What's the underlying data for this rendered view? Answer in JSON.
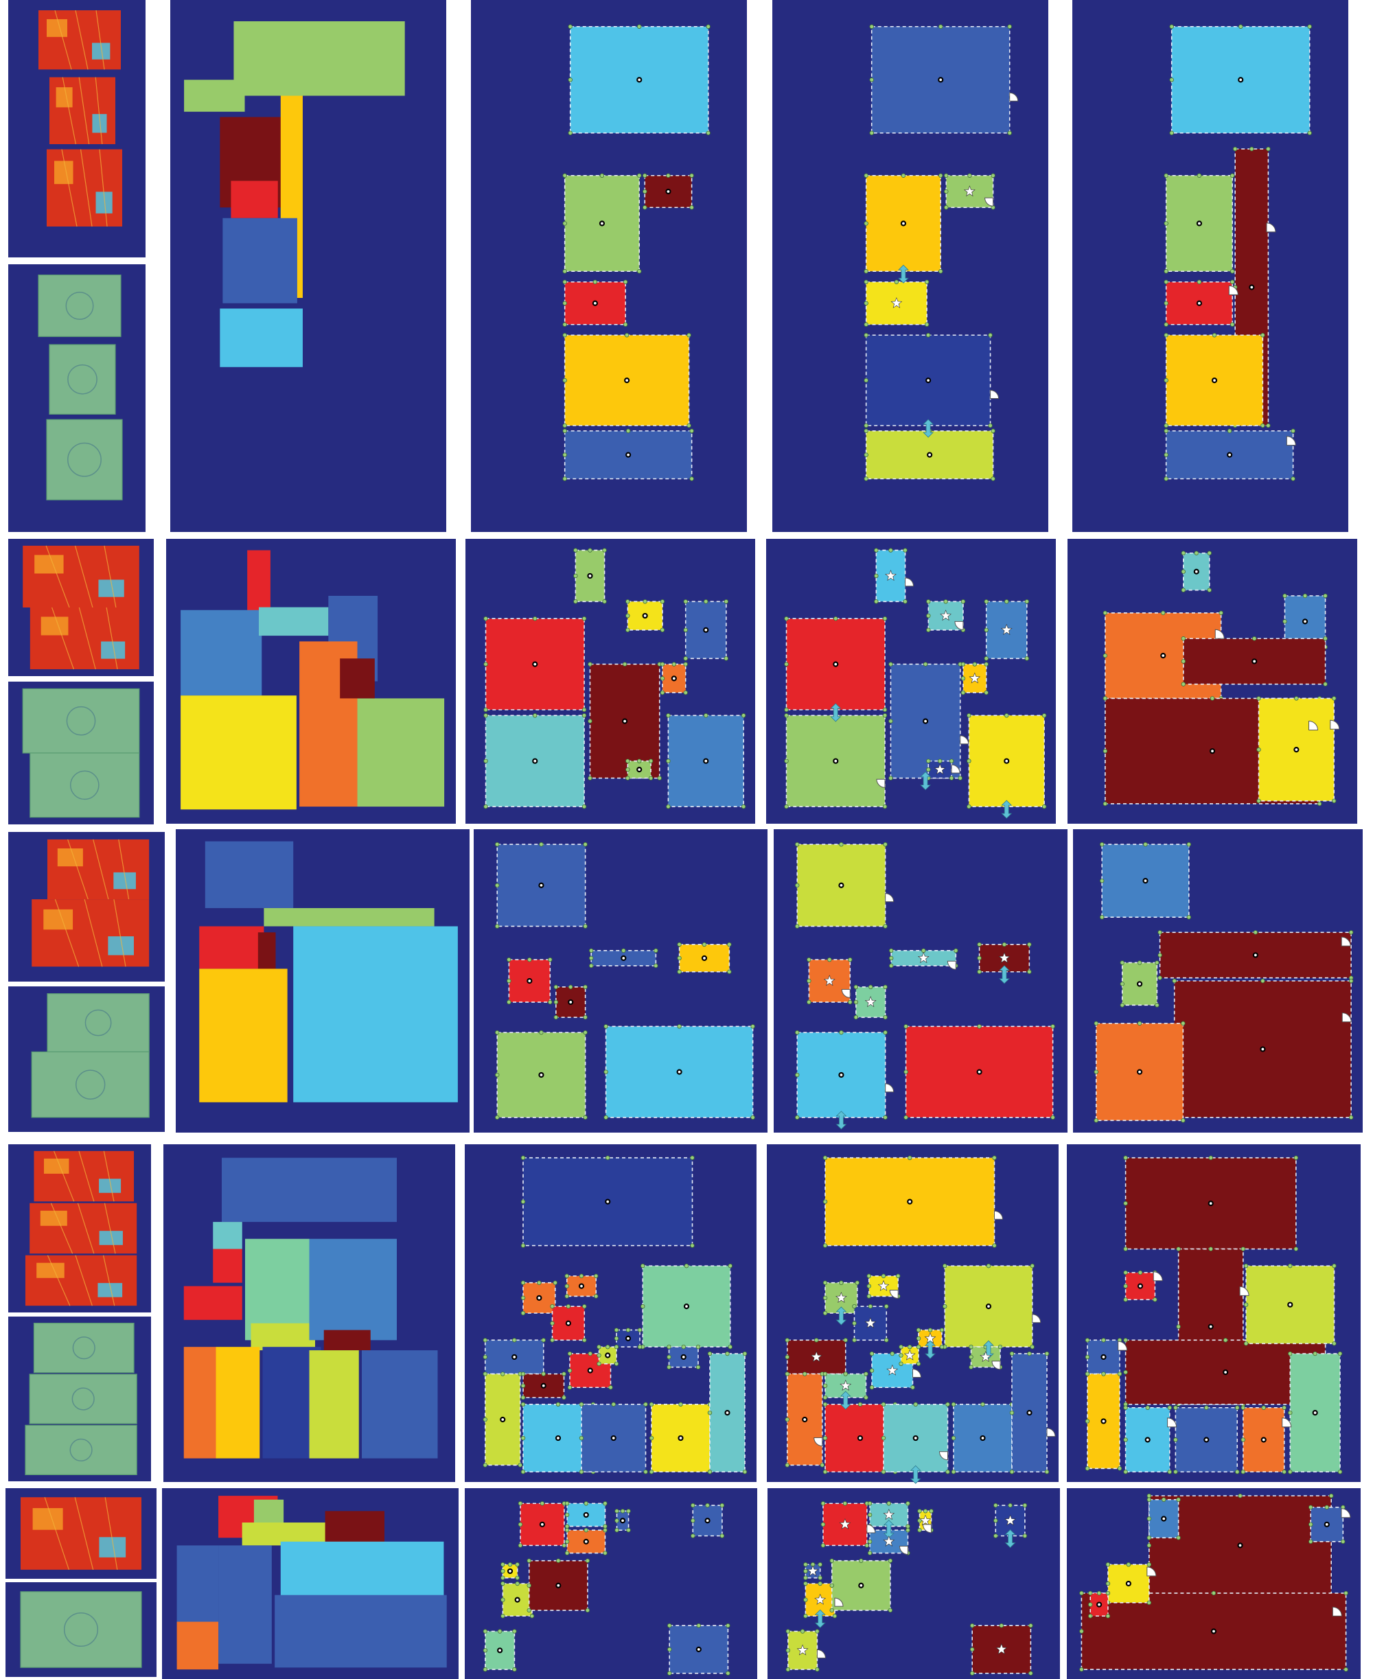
{
  "colors": {
    "background": "#262b80",
    "navy": "#2a3e9a",
    "blue": "#3b5fb0",
    "steel": "#4481c4",
    "sky": "#4fc3e8",
    "teal": "#6cc7c9",
    "mint": "#7dcfa0",
    "green": "#98cb6a",
    "lime": "#c9dd3c",
    "yellow": "#f4e31a",
    "gold": "#fdc80c",
    "orange": "#f0712a",
    "red": "#e5252a",
    "maroon": "#7a1215",
    "heat_red": "#d8331c",
    "heat_orange": "#f08a24",
    "heat_cyan": "#4ec4df",
    "scan_green": "#8ccf8e"
  },
  "rows": [
    {
      "id": "row-1",
      "inputs": [
        "density-heatmap",
        "point-cloud-scan"
      ],
      "stages": [
        "instance-segmentation",
        "fitted-rooms",
        "room-graph",
        "merged-result"
      ],
      "room_count": 6
    },
    {
      "id": "row-2",
      "inputs": [
        "density-heatmap",
        "point-cloud-scan"
      ],
      "stages": [
        "instance-segmentation",
        "fitted-rooms",
        "room-graph",
        "merged-result"
      ],
      "room_count": 9
    },
    {
      "id": "row-3",
      "inputs": [
        "density-heatmap",
        "point-cloud-scan"
      ],
      "stages": [
        "instance-segmentation",
        "fitted-rooms",
        "room-graph",
        "merged-result"
      ],
      "room_count": 7
    },
    {
      "id": "row-4",
      "inputs": [
        "density-heatmap",
        "point-cloud-scan"
      ],
      "stages": [
        "instance-segmentation",
        "fitted-rooms",
        "room-graph",
        "merged-result"
      ],
      "room_count": 16
    },
    {
      "id": "row-5",
      "inputs": [
        "density-heatmap",
        "point-cloud-scan"
      ],
      "stages": [
        "instance-segmentation",
        "fitted-rooms",
        "room-graph",
        "merged-result"
      ],
      "room_count": 10
    }
  ],
  "icons": {
    "room_center": "dot-icon",
    "corner_vertex": "vertex-icon",
    "door": "door-swing-icon",
    "corridor": "star-icon",
    "connection": "double-arrow-icon"
  }
}
